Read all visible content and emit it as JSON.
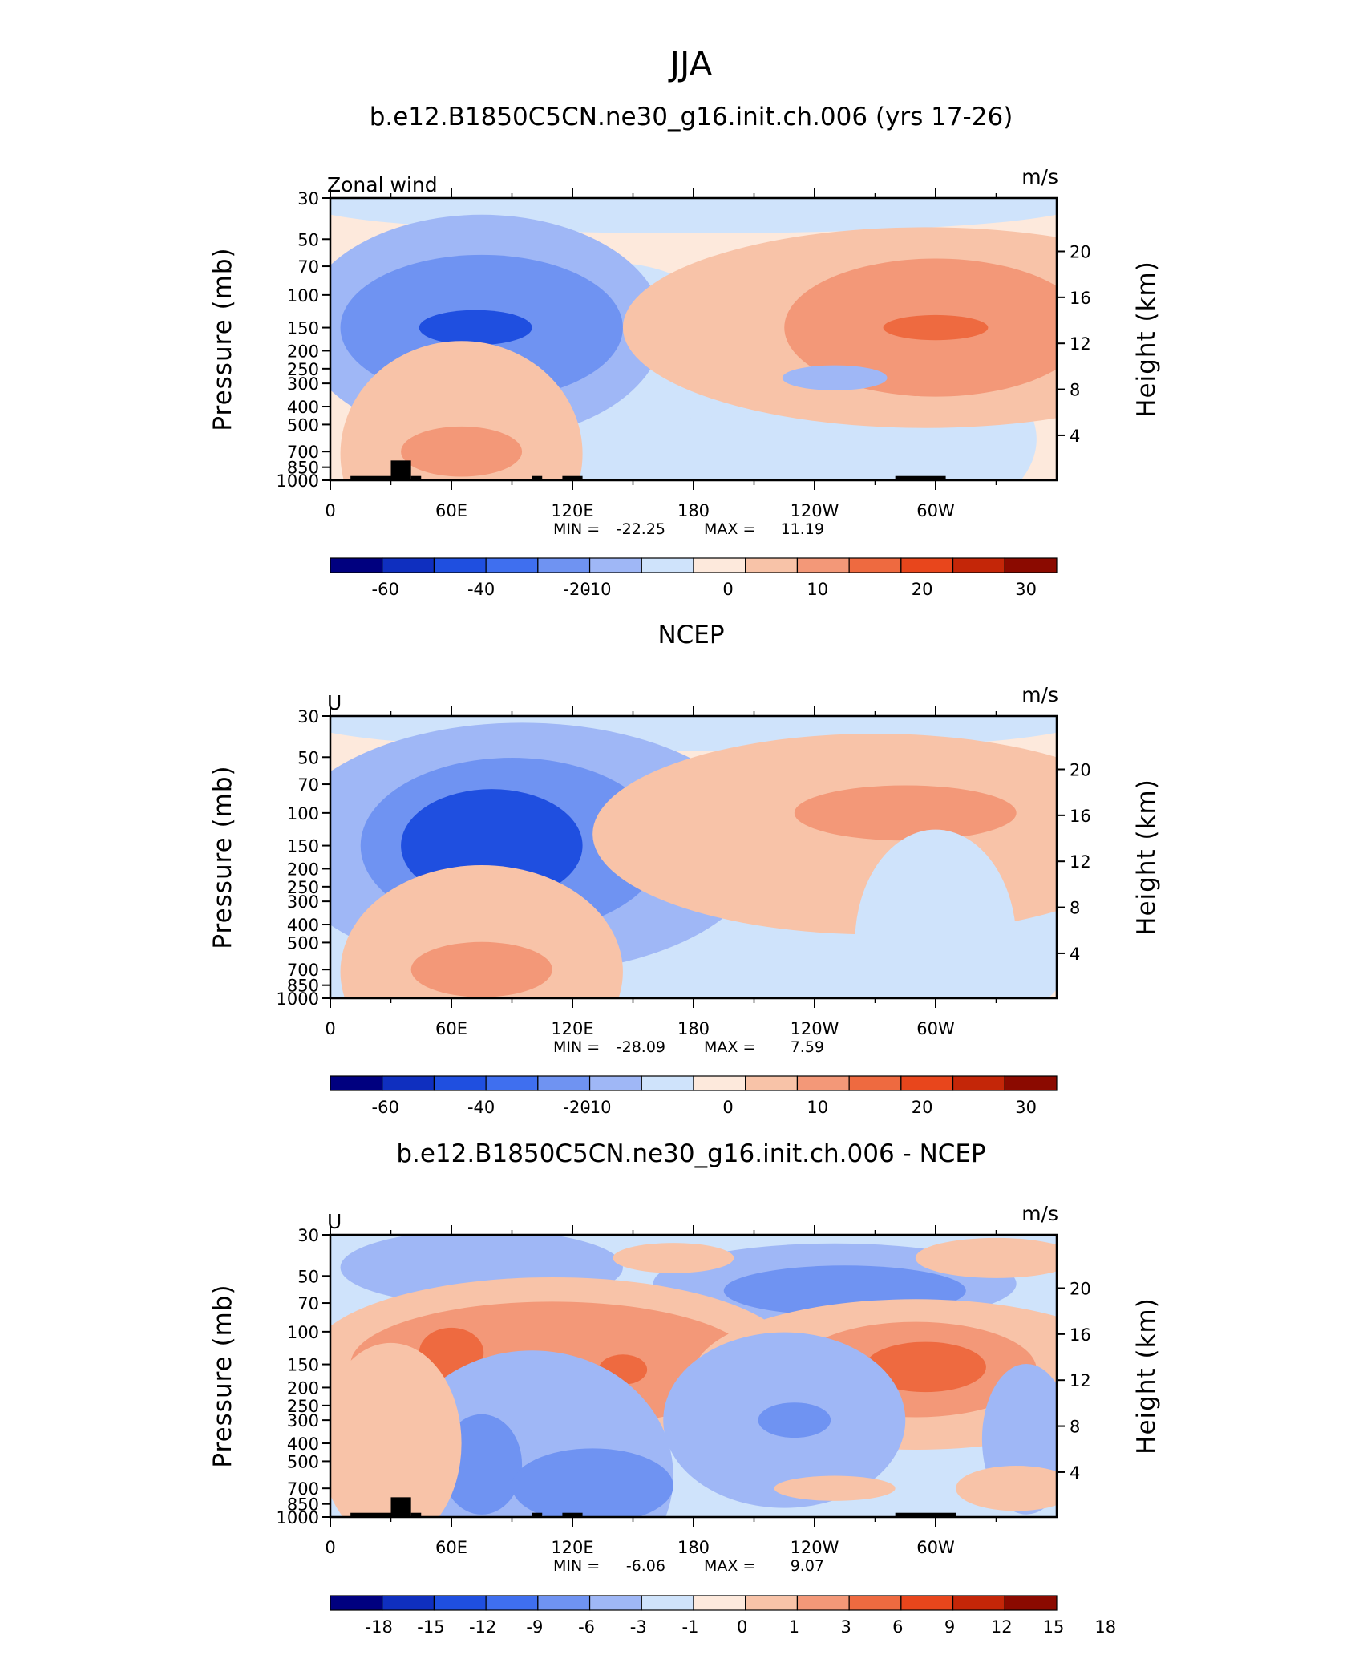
{
  "figure_title": "JJA",
  "chart_data": [
    {
      "type": "heatmap",
      "title": "b.e12.B1850C5CN.ne30_g16.init.ch.006 (yrs 17-26)",
      "left_label": "Zonal wind",
      "units": "m/s",
      "ylabel": "Pressure (mb)",
      "y2label": "Height (km)",
      "xticks": [
        "0",
        "60E",
        "120E",
        "180",
        "120W",
        "60W"
      ],
      "yticks": [
        "30",
        "50",
        "70",
        "100",
        "150",
        "200",
        "250",
        "300",
        "400",
        "500",
        "700",
        "850",
        "1000"
      ],
      "y2ticks": [
        "20",
        "16",
        "12",
        "8",
        "4"
      ],
      "stats": {
        "min": "-22.25",
        "max": "11.19"
      },
      "colorbar_labels": [
        "-60",
        "-40",
        "-20",
        "-10",
        "0",
        "10",
        "20",
        "30"
      ],
      "features": [
        {
          "lon": 75,
          "p": 150,
          "value": -22.25
        },
        {
          "lon": 300,
          "p": 150,
          "value": 11.19
        },
        {
          "lon": 65,
          "p": 750,
          "value": 6
        }
      ]
    },
    {
      "type": "heatmap",
      "title": "NCEP",
      "left_label": "U",
      "units": "m/s",
      "ylabel": "Pressure (mb)",
      "y2label": "Height (km)",
      "xticks": [
        "0",
        "60E",
        "120E",
        "180",
        "120W",
        "60W"
      ],
      "yticks": [
        "30",
        "50",
        "70",
        "100",
        "150",
        "200",
        "250",
        "300",
        "400",
        "500",
        "700",
        "850",
        "1000"
      ],
      "y2ticks": [
        "20",
        "16",
        "12",
        "8",
        "4"
      ],
      "stats": {
        "min": "-28.09",
        "max": "7.59"
      },
      "colorbar_labels": [
        "-60",
        "-40",
        "-20",
        "-10",
        "0",
        "10",
        "20",
        "30"
      ],
      "features": [
        {
          "lon": 80,
          "p": 150,
          "value": -28.09
        },
        {
          "lon": 280,
          "p": 100,
          "value": 7.59
        }
      ]
    },
    {
      "type": "heatmap",
      "title": "b.e12.B1850C5CN.ne30_g16.init.ch.006 - NCEP",
      "left_label": "U",
      "units": "m/s",
      "ylabel": "Pressure (mb)",
      "y2label": "Height (km)",
      "xticks": [
        "0",
        "60E",
        "120E",
        "180",
        "120W",
        "60W"
      ],
      "yticks": [
        "30",
        "50",
        "70",
        "100",
        "150",
        "200",
        "250",
        "300",
        "400",
        "500",
        "700",
        "850",
        "1000"
      ],
      "y2ticks": [
        "20",
        "16",
        "12",
        "8",
        "4"
      ],
      "stats": {
        "min": "-6.06",
        "max": "9.07"
      },
      "colorbar_labels": [
        "-18",
        "-15",
        "-12",
        "-9",
        "-6",
        "-3",
        "-1",
        "0",
        "1",
        "3",
        "6",
        "9",
        "12",
        "15",
        "18"
      ],
      "features": [
        {
          "lon": 300,
          "p": 150,
          "value": 9.07
        },
        {
          "lon": 230,
          "p": 60,
          "value": -6.06
        }
      ]
    }
  ],
  "colors": {
    "palette": [
      "#00007f",
      "#0f2fbf",
      "#1f4fe0",
      "#3f6fef",
      "#6f93f2",
      "#9fb7f6",
      "#cfe3fb",
      "#fde9dc",
      "#f8c3a8",
      "#f39878",
      "#ee6a40",
      "#e8461c",
      "#c42608",
      "#8b0a00"
    ],
    "land": "#000000"
  }
}
